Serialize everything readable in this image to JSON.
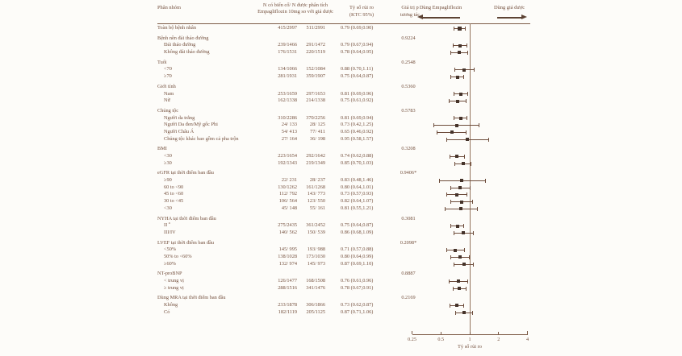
{
  "figure": {
    "columns": {
      "subgroup": "Phân nhóm",
      "n_line1": "N có biến cố/ N được phân tích",
      "n_line2": "Empagliflozin 10mg so với giả dược",
      "hr_line1": "Tỷ số rủi ro",
      "hr_line2": "(KTC 95%)",
      "p_line1": "Giá trị p",
      "p_line2": "tương tác"
    },
    "direction_left": "Dùng Empagliflozin",
    "direction_right": "Dùng giả dược",
    "colors": {
      "background": "#fdfcf9",
      "text": "#74503e",
      "line": "#7d5b47",
      "marker": "#45332a",
      "arrow": "#5d4334"
    }
  },
  "chart_data": {
    "type": "forest",
    "title": "",
    "xlabel": "Tỷ số rủi ro",
    "axis": {
      "scale": "log",
      "ticks": [
        0.25,
        0.5,
        1,
        2,
        4
      ],
      "tick_labels": [
        "0.25",
        "0.5",
        "1",
        "2",
        "4"
      ],
      "reference_line": 1,
      "xlim": [
        0.25,
        4
      ]
    },
    "rows": [
      {
        "kind": "data",
        "indent": 0,
        "big": true,
        "label": "Toàn bộ bệnh nhân",
        "empa": "415/2997",
        "placebo": "511/2991",
        "hr_text": "0.79 (0.69,0.90)",
        "hr": 0.79,
        "lo": 0.69,
        "hi": 0.9
      },
      {
        "kind": "group",
        "label": "Bệnh nền đái tháo đường",
        "p": "0.9224"
      },
      {
        "kind": "data",
        "indent": 1,
        "label": "Đái tháo đường",
        "empa": "239/1466",
        "placebo": "291/1472",
        "hr_text": "0.79 (0.67,0.94)",
        "hr": 0.79,
        "lo": 0.67,
        "hi": 0.94
      },
      {
        "kind": "data",
        "indent": 1,
        "label": "Không đái tháo đường",
        "empa": "176/1531",
        "placebo": "220/1519",
        "hr_text": "0.78 (0.64,0.95)",
        "hr": 0.78,
        "lo": 0.64,
        "hi": 0.95
      },
      {
        "kind": "group",
        "label": "Tuổi",
        "p": "0.2548"
      },
      {
        "kind": "data",
        "indent": 1,
        "label": "<70",
        "empa": "134/1066",
        "placebo": "152/1084",
        "hr_text": "0.88 (0.70,1.11)",
        "hr": 0.88,
        "lo": 0.7,
        "hi": 1.11
      },
      {
        "kind": "data",
        "indent": 1,
        "label": "≥70",
        "empa": "281/1931",
        "placebo": "359/1907",
        "hr_text": "0.75 (0.64,0.87)",
        "hr": 0.75,
        "lo": 0.64,
        "hi": 0.87
      },
      {
        "kind": "group",
        "label": "Giới tính",
        "p": "0.5360"
      },
      {
        "kind": "data",
        "indent": 1,
        "label": "Nam",
        "empa": "253/1659",
        "placebo": "297/1653",
        "hr_text": "0.81 (0.69,0.96)",
        "hr": 0.81,
        "lo": 0.69,
        "hi": 0.96
      },
      {
        "kind": "data",
        "indent": 1,
        "label": "Nữ",
        "empa": "162/1338",
        "placebo": "214/1338",
        "hr_text": "0.75 (0.61,0.92)",
        "hr": 0.75,
        "lo": 0.61,
        "hi": 0.92
      },
      {
        "kind": "group",
        "label": "Chủng tộc",
        "p": "0.5783"
      },
      {
        "kind": "data",
        "indent": 1,
        "label": "Người da trắng",
        "empa": "310/2286",
        "placebo": "370/2256",
        "hr_text": "0.81 (0.69,0.94)",
        "hr": 0.81,
        "lo": 0.69,
        "hi": 0.94
      },
      {
        "kind": "data",
        "indent": 1,
        "label": "Người Da đen/Mỹ gốc Phi",
        "empa": "24/ 133",
        "placebo": "28/ 125",
        "hr_text": "0.73 (0.42,1.25)",
        "hr": 0.73,
        "lo": 0.42,
        "hi": 1.25
      },
      {
        "kind": "data",
        "indent": 1,
        "label": "Người Châu Á",
        "empa": "54/ 413",
        "placebo": "77/ 411",
        "hr_text": "0.65 (0.46,0.92)",
        "hr": 0.65,
        "lo": 0.46,
        "hi": 0.92
      },
      {
        "kind": "data",
        "indent": 1,
        "label": "Chủng tộc khác bao gồm cả pha trộn",
        "empa": "27/ 164",
        "placebo": "36/ 198",
        "hr_text": "0.95 (0.58,1.57)",
        "hr": 0.95,
        "lo": 0.58,
        "hi": 1.57
      },
      {
        "kind": "group",
        "label": "BMI",
        "p": "0.3208"
      },
      {
        "kind": "data",
        "indent": 1,
        "label": "<30",
        "empa": "223/1654",
        "placebo": "292/1642",
        "hr_text": "0.74 (0.62,0.88)",
        "hr": 0.74,
        "lo": 0.62,
        "hi": 0.88
      },
      {
        "kind": "data",
        "indent": 1,
        "label": "≥30",
        "empa": "192/1343",
        "placebo": "219/1349",
        "hr_text": "0.85 (0.70,1.03)",
        "hr": 0.85,
        "lo": 0.7,
        "hi": 1.03
      },
      {
        "kind": "group",
        "label": "eGFR tại thời điểm ban đầu",
        "p": "0.9406*"
      },
      {
        "kind": "data",
        "indent": 1,
        "label": "≥90",
        "empa": "22/ 231",
        "placebo": "28/ 237",
        "hr_text": "0.83 (0.48,1.46)",
        "hr": 0.83,
        "lo": 0.48,
        "hi": 1.46
      },
      {
        "kind": "data",
        "indent": 1,
        "label": "60 to <90",
        "empa": "130/1262",
        "placebo": "161/1268",
        "hr_text": "0.80 (0.64,1.01)",
        "hr": 0.8,
        "lo": 0.64,
        "hi": 1.01
      },
      {
        "kind": "data",
        "indent": 1,
        "label": "45 to <60",
        "empa": "112/ 792",
        "placebo": "143/ 773",
        "hr_text": "0.73 (0.57,0.93)",
        "hr": 0.73,
        "lo": 0.57,
        "hi": 0.93
      },
      {
        "kind": "data",
        "indent": 1,
        "label": "30 to <45",
        "empa": "106/ 564",
        "placebo": "123/ 550",
        "hr_text": "0.82 (0.64,1.07)",
        "hr": 0.82,
        "lo": 0.64,
        "hi": 1.07
      },
      {
        "kind": "data",
        "indent": 1,
        "label": "<30",
        "empa": "45/ 148",
        "placebo": "55/ 161",
        "hr_text": "0.81 (0.55,1.21)",
        "hr": 0.81,
        "lo": 0.55,
        "hi": 1.21
      },
      {
        "kind": "group",
        "label": "NYHA tại thời điểm ban đầu",
        "p": "0.3081"
      },
      {
        "kind": "data",
        "indent": 1,
        "label": "II ",
        "sup": "a",
        "empa": "275/2435",
        "placebo": "361/2452",
        "hr_text": "0.75 (0.64,0.87)",
        "hr": 0.75,
        "lo": 0.64,
        "hi": 0.87
      },
      {
        "kind": "data",
        "indent": 1,
        "label": "III/IV",
        "empa": "140/ 562",
        "placebo": "150/ 539",
        "hr_text": "0.86 (0.68,1.09)",
        "hr": 0.86,
        "lo": 0.68,
        "hi": 1.09
      },
      {
        "kind": "group",
        "label": "LVEF tại thời điểm ban đầu",
        "p": "0.2098*"
      },
      {
        "kind": "data",
        "indent": 1,
        "label": "<50%",
        "empa": "145/ 995",
        "placebo": "193/ 988",
        "hr_text": "0.71 (0.57,0.88)",
        "hr": 0.71,
        "lo": 0.57,
        "hi": 0.88
      },
      {
        "kind": "data",
        "indent": 1,
        "label": "50% to <60%",
        "empa": "138/1028",
        "placebo": "173/1030",
        "hr_text": "0.80 (0.64,0.99)",
        "hr": 0.8,
        "lo": 0.64,
        "hi": 0.99
      },
      {
        "kind": "data",
        "indent": 1,
        "label": "≥60%",
        "empa": "132/ 974",
        "placebo": "145/ 973",
        "hr_text": "0.87 (0.69,1.10)",
        "hr": 0.87,
        "lo": 0.69,
        "hi": 1.1
      },
      {
        "kind": "group",
        "label": "NT-proBNP",
        "p": "0.8887"
      },
      {
        "kind": "data",
        "indent": 1,
        "label": "< trung vị",
        "empa": "126/1477",
        "placebo": "168/1508",
        "hr_text": "0.76 (0.61,0.96)",
        "hr": 0.76,
        "lo": 0.61,
        "hi": 0.96
      },
      {
        "kind": "data",
        "indent": 1,
        "label": "≥ trung vị",
        "empa": "288/1516",
        "placebo": "341/1476",
        "hr_text": "0.78 (0.67,0.91)",
        "hr": 0.78,
        "lo": 0.67,
        "hi": 0.91
      },
      {
        "kind": "group",
        "label": "Dùng MRA tại thời điểm ban đầu",
        "p": "0.2169"
      },
      {
        "kind": "data",
        "indent": 1,
        "label": "Không",
        "empa": "233/1878",
        "placebo": "306/1866",
        "hr_text": "0.73 (0.62,0.87)",
        "hr": 0.73,
        "lo": 0.62,
        "hi": 0.87
      },
      {
        "kind": "data",
        "indent": 1,
        "label": "Có",
        "empa": "182/1119",
        "placebo": "205/1125",
        "hr_text": "0.87 (0.71,1.06)",
        "hr": 0.87,
        "lo": 0.71,
        "hi": 1.06
      }
    ]
  }
}
